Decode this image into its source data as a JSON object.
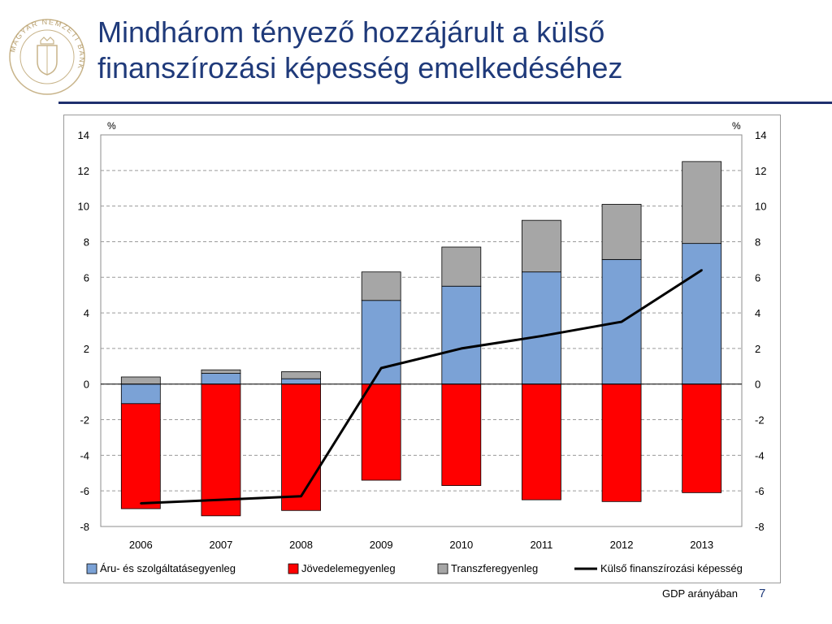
{
  "slide": {
    "title_line1": "Mindhárom tényező hozzájárult a külső",
    "title_line2": "finanszírozási képesség emelkedéséhez",
    "logo_text": "MAGYAR NEMZETI BANK",
    "footnote": "GDP arányában",
    "page_number": "7"
  },
  "colors": {
    "title": "#1f3a7a",
    "rule": "#1f2f6e",
    "goods": "#7ba2d6",
    "income": "#ff0000",
    "transfer": "#a6a6a6",
    "line": "#000000"
  },
  "chart_data": {
    "type": "bar",
    "stacked": true,
    "categories": [
      "2006",
      "2007",
      "2008",
      "2009",
      "2010",
      "2011",
      "2012",
      "2013"
    ],
    "y_unit_left": "%",
    "y_unit_right": "%",
    "ylim": [
      -8,
      14
    ],
    "yticks": [
      -8,
      -6,
      -4,
      -2,
      0,
      2,
      4,
      6,
      8,
      10,
      12,
      14
    ],
    "ytick_labels": [
      "-8",
      "-6",
      "-4",
      "-2",
      "0",
      "2",
      "4",
      "6",
      "8",
      "10",
      "12",
      "14"
    ],
    "grid": true,
    "legend_position": "bottom",
    "series": [
      {
        "name": "Áru- és szolgáltatásegyenleg",
        "kind": "bar",
        "color": "#7ba2d6",
        "values": [
          -1.1,
          0.6,
          0.3,
          4.7,
          5.5,
          6.3,
          7.0,
          7.9
        ]
      },
      {
        "name": "Jövedelemegyenleg",
        "kind": "bar",
        "color": "#ff0000",
        "values": [
          -5.9,
          -7.4,
          -7.1,
          -5.4,
          -5.7,
          -6.5,
          -6.6,
          -6.1
        ]
      },
      {
        "name": "Transzferegyenleg",
        "kind": "bar",
        "color": "#a6a6a6",
        "values": [
          0.4,
          0.2,
          0.4,
          1.6,
          2.2,
          2.9,
          3.1,
          4.6
        ]
      },
      {
        "name": "Külső finanszírozási képesség",
        "kind": "line",
        "color": "#000000",
        "values": [
          -6.7,
          -6.5,
          -6.3,
          0.9,
          2.0,
          2.7,
          3.5,
          6.4
        ]
      }
    ]
  }
}
